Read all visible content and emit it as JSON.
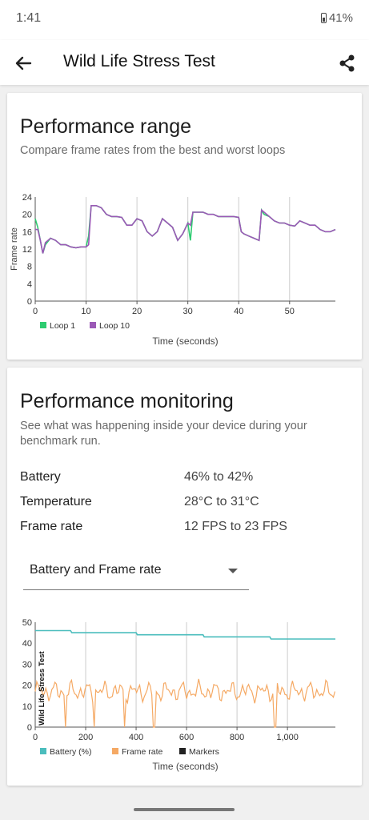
{
  "status": {
    "time": "1:41",
    "battery": "41%"
  },
  "appbar": {
    "title": "Wild Life Stress Test"
  },
  "range": {
    "title": "Performance range",
    "subtitle": "Compare frame rates from the best and worst loops"
  },
  "monitoring": {
    "title": "Performance monitoring",
    "subtitle": "See what was happening inside your device during your benchmark run.",
    "stats": [
      {
        "label": "Battery",
        "value": "46% to 42%"
      },
      {
        "label": "Temperature",
        "value": "28°C to 31°C"
      },
      {
        "label": "Frame rate",
        "value": "12 FPS to 23 FPS"
      }
    ],
    "dropdown": "Battery and Frame rate"
  },
  "colors": {
    "loop1": "#2ecc71",
    "loop10": "#9b59b6",
    "battery": "#4bbdbd",
    "framerate": "#f5a964",
    "markers": "#222222"
  },
  "chart_data": [
    {
      "type": "line",
      "xlabel": "Time (seconds)",
      "ylabel": "Frame rate",
      "xlim": [
        0,
        59
      ],
      "ylim": [
        0,
        24
      ],
      "xticks": [
        0,
        10,
        20,
        30,
        40,
        50
      ],
      "yticks": [
        0,
        4,
        8,
        12,
        16,
        20,
        24
      ],
      "grid_x": true,
      "legend": "bottom-left",
      "series": [
        {
          "name": "Loop 1",
          "x": [
            0,
            0.5,
            1,
            1.5,
            2,
            3,
            4,
            5,
            6,
            7,
            8,
            9,
            10,
            10.5,
            11,
            12,
            13,
            14,
            15,
            16,
            17,
            18,
            19,
            20,
            21,
            22,
            23,
            24,
            25,
            26,
            27,
            28,
            29,
            30,
            30.5,
            31,
            32,
            33,
            34,
            35,
            36,
            37,
            38,
            39,
            40,
            40.5,
            41,
            42,
            43,
            44,
            44.5,
            45,
            46,
            47,
            48,
            49,
            50,
            51,
            52,
            53,
            54,
            55,
            56,
            57,
            58,
            59
          ],
          "y": [
            19,
            17,
            14,
            11,
            13,
            14.5,
            14,
            13,
            13,
            12.5,
            12.3,
            12.5,
            12.5,
            15,
            22,
            22,
            21.5,
            20,
            19.5,
            19.5,
            19.3,
            17.5,
            17.5,
            19,
            18.5,
            16,
            15,
            16,
            19,
            18,
            17,
            14,
            15.5,
            18,
            14,
            20.5,
            20.5,
            20.5,
            20,
            20,
            19.5,
            19.5,
            19.5,
            19.5,
            19.3,
            16,
            15.5,
            15,
            14.5,
            14,
            21,
            20,
            19.5,
            18.5,
            18,
            18,
            17.5,
            17.3,
            18.5,
            18,
            17.5,
            17.5,
            16.5,
            16,
            16,
            16.5
          ]
        },
        {
          "name": "Loop 10",
          "x": [
            0,
            0.5,
            1,
            1.5,
            2,
            3,
            4,
            5,
            6,
            7,
            8,
            9,
            10,
            10.5,
            11,
            12,
            13,
            14,
            15,
            16,
            17,
            18,
            19,
            20,
            21,
            22,
            23,
            24,
            25,
            26,
            27,
            28,
            29,
            30,
            30.5,
            31,
            32,
            33,
            34,
            35,
            36,
            37,
            38,
            39,
            40,
            40.5,
            41,
            42,
            43,
            44,
            44.5,
            45,
            46,
            47,
            48,
            49,
            50,
            51,
            52,
            53,
            54,
            55,
            56,
            57,
            58,
            59
          ],
          "y": [
            16.5,
            16.5,
            14,
            11,
            13.5,
            14.5,
            14,
            13,
            13,
            12.5,
            12.3,
            12.5,
            12.5,
            13,
            22,
            22,
            21.5,
            20,
            19.5,
            19.5,
            19.3,
            17.5,
            17.5,
            19,
            18.5,
            16,
            15,
            16,
            19,
            18,
            17,
            14,
            15.5,
            18,
            17.5,
            20.5,
            20.5,
            20.5,
            20,
            20,
            19.5,
            19.5,
            19.5,
            19.5,
            19.3,
            16,
            15.5,
            15,
            14.5,
            14,
            21,
            20.5,
            19.5,
            18.5,
            18,
            18,
            17.5,
            17.3,
            18.5,
            18,
            17.5,
            17.5,
            16.5,
            16,
            16,
            16.5
          ]
        }
      ]
    },
    {
      "type": "line",
      "xlabel": "Time (seconds)",
      "ylabel": "",
      "xlim": [
        0,
        1190
      ],
      "ylim": [
        0,
        50
      ],
      "xticks": [
        0,
        200,
        400,
        600,
        800,
        1000
      ],
      "xticklabels": [
        "0",
        "200",
        "400",
        "600",
        "800",
        "1,000"
      ],
      "yticks": [
        0,
        10,
        20,
        30,
        40,
        50
      ],
      "grid_x": true,
      "legend": "bottom-left",
      "marker_label": "Wild Life Stress Test",
      "battery_series": {
        "name": "Battery (%)",
        "x": [
          0,
          140,
          145,
          400,
          405,
          665,
          670,
          930,
          935,
          1190
        ],
        "y": [
          46,
          46,
          45,
          45,
          44,
          44,
          43,
          43,
          42,
          42
        ]
      },
      "framerate_series": {
        "name": "Frame rate",
        "mean": 17,
        "amplitude": 4.5,
        "dips_at": [
          120,
          235,
          355,
          470,
          950
        ]
      },
      "markers_series": {
        "name": "Markers",
        "x": [
          0,
          140,
          400,
          600,
          800,
          1000
        ]
      }
    }
  ]
}
